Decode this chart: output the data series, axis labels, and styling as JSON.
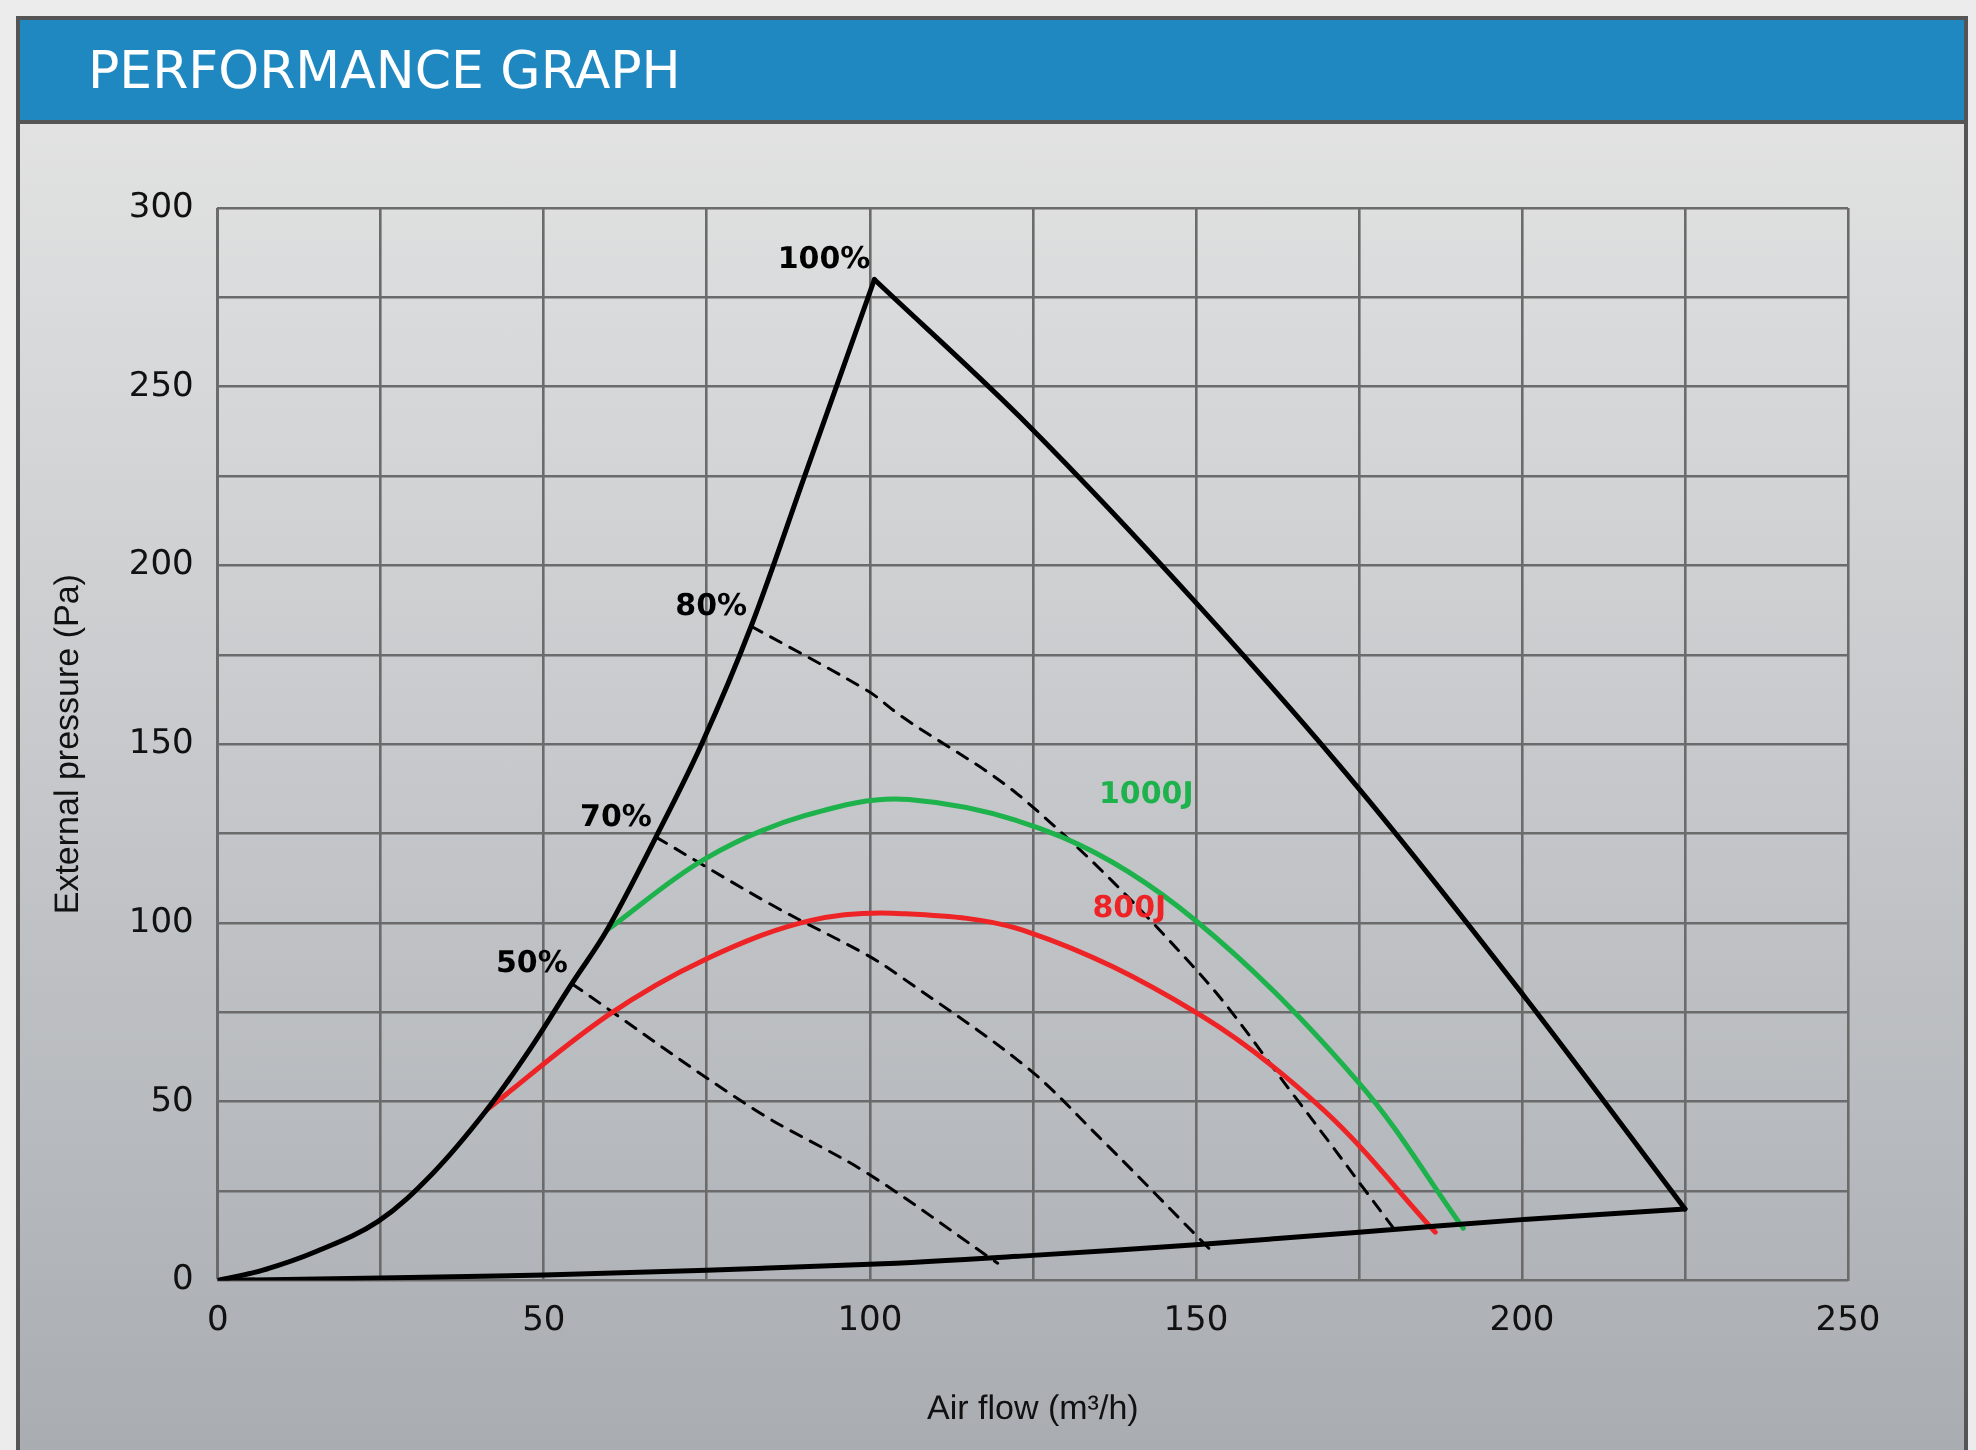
{
  "chart_data": {
    "type": "line",
    "title": "PERFORMANCE GRAPH",
    "xlabel": "Air flow (m³/h)",
    "ylabel": "External pressure (Pa)",
    "xlim": [
      0,
      250
    ],
    "ylim": [
      0,
      300
    ],
    "xticks": [
      0,
      {
        "value": 25,
        "label": null
      },
      50,
      {
        "value": 75,
        "label": null
      },
      100,
      {
        "value": 125,
        "label": null
      },
      150,
      {
        "value": 175,
        "label": null
      },
      200,
      {
        "value": 225,
        "label": null
      },
      250
    ],
    "yticks": [
      0,
      {
        "value": 25,
        "label": null
      },
      50,
      {
        "value": 75,
        "label": null
      },
      100,
      {
        "value": 125,
        "label": null
      },
      150,
      {
        "value": 175,
        "label": null
      },
      200,
      {
        "value": 225,
        "label": null
      },
      250,
      {
        "value": 275,
        "label": null
      },
      300
    ],
    "grid": true,
    "legend": false,
    "marker": "none",
    "line_style": "solid",
    "series": [
      {
        "color": "#000000",
        "x": [
          0,
          6.8,
          15,
          24.6,
          33,
          41.3,
          48,
          54.3,
          59.7,
          67.2,
          74.2,
          81.8,
          90,
          100.7
        ],
        "values": [
          0,
          2.8,
          8,
          16.5,
          30,
          47.8,
          65,
          83,
          98,
          124,
          150,
          183,
          225,
          280
        ]
      },
      {
        "color": "#000000",
        "x": [
          100.7,
          124.1,
          150,
          174.8,
          199.7,
          225
        ],
        "values": [
          280,
          239.6,
          189.6,
          138,
          81,
          20
        ]
      },
      {
        "color": "#000000",
        "x": [
          0,
          50,
          100,
          125,
          150,
          175,
          200,
          225
        ],
        "values": [
          0,
          1.5,
          4.5,
          7,
          10,
          13.5,
          17,
          20
        ]
      },
      {
        "name": "1000J",
        "color": "#1db24b",
        "x": [
          59.7,
          74.8,
          90,
          106,
          129.5,
          150,
          174.8,
          191
        ],
        "values": [
          98,
          118,
          130,
          134.5,
          124,
          100.6,
          55.7,
          14.6
        ]
      },
      {
        "name": "800J",
        "color": "#ee2326",
        "x": [
          41.3,
          59.7,
          75,
          91,
          105,
          124.1,
          150,
          169.5,
          186.7
        ],
        "values": [
          47.8,
          74,
          90,
          100.7,
          102.6,
          97.6,
          75,
          47.8,
          13.5
        ]
      },
      {
        "color": "#000000",
        "line_style": "dashed",
        "x": [
          81.8,
          99.6,
          104.7,
          124,
          150,
          165,
          180.3
        ],
        "values": [
          183,
          165,
          158,
          134,
          87,
          51.8,
          14.6
        ]
      },
      {
        "color": "#000000",
        "line_style": "dashed",
        "x": [
          67.2,
          85,
          99.6,
          104.7,
          124,
          135.2,
          152.2
        ],
        "values": [
          124,
          105,
          91,
          85,
          59.7,
          40,
          8.6
        ]
      },
      {
        "color": "#000000",
        "line_style": "dashed",
        "x": [
          54.3,
          82.3,
          99.6,
          119.6
        ],
        "values": [
          83,
          47.8,
          30,
          4.8
        ]
      }
    ],
    "annotations": [
      {
        "text": "100%",
        "x": 100.7,
        "y": 280
      },
      {
        "text": "80%",
        "x": 81.8,
        "y": 183
      },
      {
        "text": "70%",
        "x": 67.2,
        "y": 124
      },
      {
        "text": "50%",
        "x": 54.3,
        "y": 83
      }
    ]
  }
}
